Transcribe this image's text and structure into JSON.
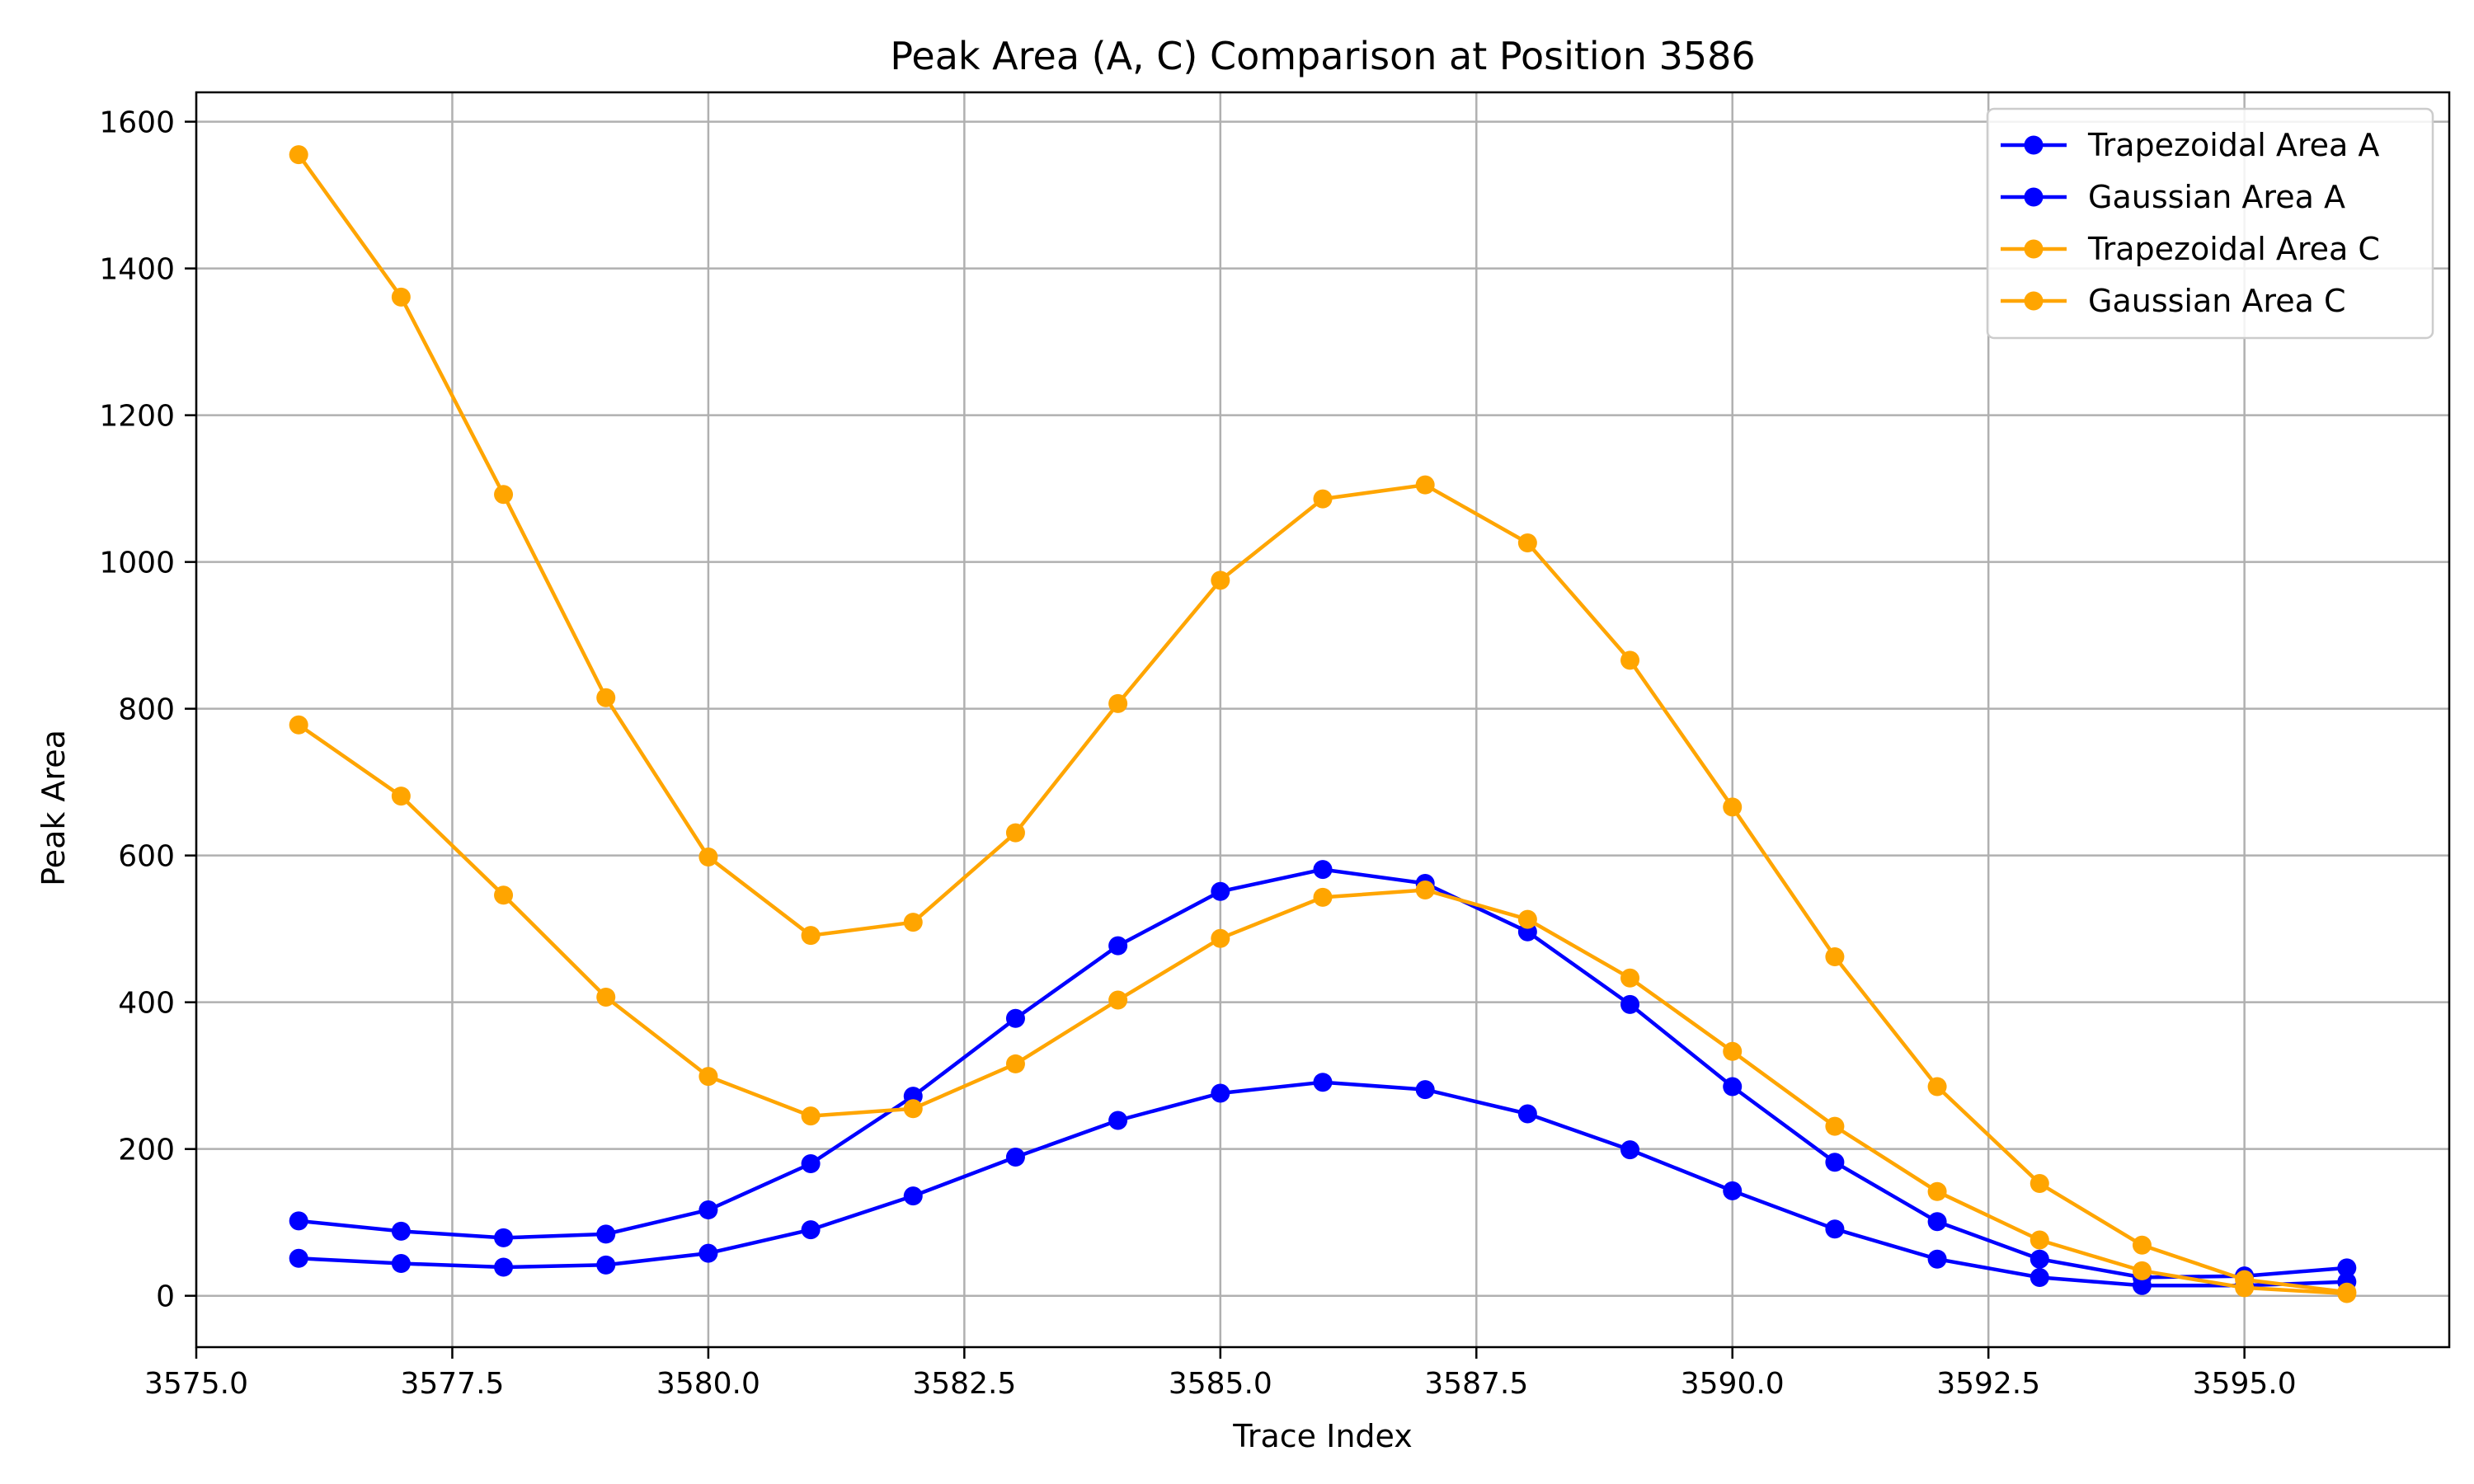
{
  "chart_data": {
    "type": "line",
    "title": "Peak Area (A, C) Comparison at Position 3586",
    "xlabel": "Trace Index",
    "ylabel": "Peak Area",
    "xlim": [
      3575.0,
      3597.0
    ],
    "ylim": [
      -70,
      1640
    ],
    "xticks": [
      3575.0,
      3577.5,
      3580.0,
      3582.5,
      3585.0,
      3587.5,
      3590.0,
      3592.5,
      3595.0
    ],
    "xtick_labels": [
      "3575.0",
      "3577.5",
      "3580.0",
      "3582.5",
      "3585.0",
      "3587.5",
      "3590.0",
      "3592.5",
      "3595.0"
    ],
    "yticks": [
      0,
      200,
      400,
      600,
      800,
      1000,
      1200,
      1400,
      1600
    ],
    "ytick_labels": [
      "0",
      "200",
      "400",
      "600",
      "800",
      "1000",
      "1200",
      "1400",
      "1600"
    ],
    "grid": true,
    "legend_position": "top-right",
    "x": [
      3576,
      3577,
      3578,
      3579,
      3580,
      3581,
      3582,
      3583,
      3584,
      3585,
      3586,
      3587,
      3588,
      3589,
      3590,
      3591,
      3592,
      3593,
      3594,
      3595,
      3596
    ],
    "series": [
      {
        "name": "Trapezoidal Area A",
        "color": "#0000ff",
        "values": [
          102,
          88,
          79,
          84,
          117,
          180,
          272,
          378,
          477,
          551,
          581,
          562,
          496,
          397,
          285,
          182,
          101,
          50,
          25,
          27,
          38
        ]
      },
      {
        "name": "Gaussian Area A",
        "color": "#0000ff",
        "values": [
          51,
          44,
          39,
          42,
          58,
          90,
          136,
          189,
          239,
          276,
          291,
          281,
          248,
          199,
          143,
          91,
          50,
          25,
          14,
          14,
          19
        ]
      },
      {
        "name": "Trapezoidal Area C",
        "color": "#ffa500",
        "values": [
          1555,
          1361,
          1092,
          815,
          598,
          491,
          509,
          631,
          807,
          975,
          1086,
          1105,
          1026,
          866,
          666,
          462,
          285,
          153,
          69,
          22,
          5
        ]
      },
      {
        "name": "Gaussian Area C",
        "color": "#ffa500",
        "values": [
          778,
          681,
          546,
          407,
          299,
          245,
          255,
          316,
          403,
          487,
          543,
          553,
          513,
          433,
          333,
          231,
          142,
          76,
          34,
          11,
          3
        ]
      }
    ]
  }
}
